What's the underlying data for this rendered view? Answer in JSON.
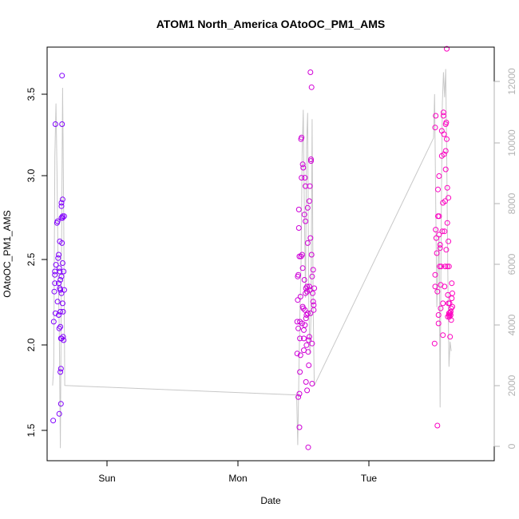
{
  "chart_data": {
    "type": "scatter",
    "title": "ATOM1 North_America OAtoOC_PM1_AMS",
    "xlabel": "Date",
    "ylabel": "OAtoOC_PM1_AMS",
    "x_ticks": [
      "Sun",
      "Mon",
      "Tue"
    ],
    "y_ticks": [
      "1.5",
      "2.0",
      "2.5",
      "3.0",
      "3.5"
    ],
    "y2_ticks": [
      "0",
      "2000",
      "4000",
      "6000",
      "8000",
      "10000",
      "12000"
    ],
    "x_axis_unit": "hours from 2016-05-07T12:00 (Sun tick at 12, Mon at 36, Tue at 60)",
    "xlim": [
      0.3,
      81.3
    ],
    "ylim": [
      1.32,
      3.79
    ],
    "y2lim": [
      -200,
      13000
    ],
    "grid": false,
    "legend": "none",
    "colors": {
      "start": "#7f00ff",
      "end": "#ff00bf",
      "line": "#c8c8c8",
      "right_axis": "#b3b3b3"
    },
    "series": [
      {
        "values_xy": [
          [
            1.4,
            1.56
          ],
          [
            1.5,
            2.15
          ],
          [
            1.6,
            2.33
          ],
          [
            1.7,
            2.43
          ],
          [
            1.7,
            2.45
          ],
          [
            1.7,
            2.38
          ],
          [
            1.8,
            2.2
          ],
          [
            1.8,
            3.33
          ],
          [
            1.9,
            2.49
          ],
          [
            2.1,
            2.74
          ],
          [
            2.2,
            2.75
          ],
          [
            2.2,
            2.27
          ],
          [
            2.3,
            2.53
          ],
          [
            2.4,
            2.55
          ],
          [
            2.4,
            2.19
          ],
          [
            2.4,
            2.38
          ],
          [
            2.5,
            2.47
          ],
          [
            2.5,
            2.11
          ],
          [
            2.5,
            1.6
          ],
          [
            2.6,
            2.45
          ],
          [
            2.6,
            2.35
          ],
          [
            2.6,
            2.63
          ],
          [
            2.7,
            2.4
          ],
          [
            2.7,
            2.21
          ],
          [
            2.7,
            2.12
          ],
          [
            2.7,
            2.34
          ],
          [
            2.7,
            1.85
          ],
          [
            2.8,
            1.87
          ],
          [
            2.8,
            1.66
          ],
          [
            2.8,
            2.05
          ],
          [
            2.9,
            2.42
          ],
          [
            2.9,
            2.32
          ],
          [
            2.9,
            2.77
          ],
          [
            2.9,
            2.84
          ],
          [
            2.9,
            2.86
          ],
          [
            2.9,
            2.05
          ],
          [
            3.0,
            3.62
          ],
          [
            3.0,
            3.33
          ],
          [
            3.0,
            2.62
          ],
          [
            3.1,
            2.77
          ],
          [
            3.1,
            2.88
          ],
          [
            3.1,
            2.78
          ],
          [
            3.1,
            2.5
          ],
          [
            3.1,
            2.26
          ],
          [
            3.2,
            2.21
          ],
          [
            3.2,
            2.06
          ],
          [
            3.3,
            2.04
          ],
          [
            3.3,
            2.45
          ],
          [
            3.4,
            2.78
          ],
          [
            3.4,
            2.34
          ]
        ]
      },
      {
        "values_xy": [
          [
            45.6,
            1.96
          ],
          [
            45.6,
            2.15
          ],
          [
            45.7,
            2.28
          ],
          [
            45.7,
            2.42
          ],
          [
            45.8,
            2.43
          ],
          [
            45.8,
            2.11
          ],
          [
            45.8,
            1.7
          ],
          [
            45.9,
            2.71
          ],
          [
            45.9,
            2.82
          ],
          [
            46.0,
            2.54
          ],
          [
            46.0,
            1.72
          ],
          [
            46.0,
            1.52
          ],
          [
            46.1,
            2.15
          ],
          [
            46.1,
            1.85
          ],
          [
            46.1,
            2.05
          ],
          [
            46.2,
            2.3
          ],
          [
            46.2,
            1.95
          ],
          [
            46.3,
            2.54
          ],
          [
            46.3,
            3.24
          ],
          [
            46.4,
            3.25
          ],
          [
            46.4,
            3.01
          ],
          [
            46.5,
            2.55
          ],
          [
            46.5,
            2.14
          ],
          [
            46.6,
            2.47
          ],
          [
            46.6,
            2.24
          ],
          [
            46.6,
            3.09
          ],
          [
            46.7,
            3.07
          ],
          [
            46.7,
            2.23
          ],
          [
            46.8,
            2.1
          ],
          [
            46.8,
            2.05
          ],
          [
            46.8,
            1.98
          ],
          [
            46.9,
            2.4
          ],
          [
            46.9,
            2.79
          ],
          [
            47.0,
            2.13
          ],
          [
            47.0,
            2.22
          ],
          [
            47.0,
            3.01
          ],
          [
            47.1,
            2.96
          ],
          [
            47.1,
            2.75
          ],
          [
            47.1,
            2.32
          ],
          [
            47.2,
            2.35
          ],
          [
            47.2,
            2.17
          ],
          [
            47.2,
            1.79
          ],
          [
            47.3,
            2.19
          ],
          [
            47.3,
            2.01
          ],
          [
            47.4,
            2.36
          ],
          [
            47.4,
            2.33
          ],
          [
            47.4,
            1.74
          ],
          [
            47.5,
            2.62
          ],
          [
            47.5,
            2.83
          ],
          [
            47.5,
            2.2
          ],
          [
            47.6,
            1.4
          ],
          [
            47.6,
            1.97
          ],
          [
            47.7,
            2.04
          ],
          [
            47.7,
            1.89
          ],
          [
            47.8,
            2.87
          ],
          [
            47.8,
            2.36
          ],
          [
            47.8,
            2.06
          ],
          [
            47.9,
            2.34
          ],
          [
            47.9,
            2.96
          ],
          [
            48.0,
            3.64
          ],
          [
            48.0,
            2.65
          ],
          [
            48.0,
            2.2
          ],
          [
            48.1,
            3.12
          ],
          [
            48.1,
            3.11
          ],
          [
            48.2,
            3.55
          ],
          [
            48.2,
            2.55
          ],
          [
            48.3,
            2.42
          ],
          [
            48.3,
            1.78
          ],
          [
            48.3,
            2.02
          ],
          [
            48.4,
            2.32
          ],
          [
            48.5,
            2.46
          ],
          [
            48.5,
            2.27
          ],
          [
            48.6,
            2.25
          ],
          [
            48.6,
            2.22
          ],
          [
            48.7,
            2.35
          ]
        ]
      },
      {
        "values_xy": [
          [
            70.5,
            2.02
          ],
          [
            70.6,
            3.31
          ],
          [
            70.6,
            2.43
          ],
          [
            70.6,
            2.36
          ],
          [
            70.7,
            3.38
          ],
          [
            70.7,
            2.7
          ],
          [
            70.8,
            2.65
          ],
          [
            70.9,
            2.56
          ],
          [
            71.0,
            2.33
          ],
          [
            71.0,
            1.53
          ],
          [
            71.1,
            2.94
          ],
          [
            71.1,
            2.78
          ],
          [
            71.2,
            2.19
          ],
          [
            71.2,
            2.14
          ],
          [
            71.3,
            3.02
          ],
          [
            71.3,
            2.78
          ],
          [
            71.3,
            2.67
          ],
          [
            71.4,
            2.48
          ],
          [
            71.5,
            2.61
          ],
          [
            71.5,
            2.59
          ],
          [
            71.6,
            2.37
          ],
          [
            71.6,
            2.23
          ],
          [
            71.7,
            2.48
          ],
          [
            71.8,
            3.29
          ],
          [
            71.8,
            3.14
          ],
          [
            71.9,
            2.69
          ],
          [
            72.0,
            2.86
          ],
          [
            72.0,
            2.26
          ],
          [
            72.0,
            2.07
          ],
          [
            72.1,
            3.38
          ],
          [
            72.1,
            3.4
          ],
          [
            72.2,
            3.27
          ],
          [
            72.2,
            3.15
          ],
          [
            72.3,
            2.69
          ],
          [
            72.3,
            2.36
          ],
          [
            72.4,
            2.48
          ],
          [
            72.4,
            2.87
          ],
          [
            72.5,
            3.06
          ],
          [
            72.5,
            3.17
          ],
          [
            72.5,
            3.33
          ],
          [
            72.6,
            3.34
          ],
          [
            72.6,
            2.58
          ],
          [
            72.7,
            3.78
          ],
          [
            72.7,
            3.24
          ],
          [
            72.8,
            2.95
          ],
          [
            72.8,
            2.74
          ],
          [
            72.8,
            2.48
          ],
          [
            72.9,
            2.31
          ],
          [
            72.9,
            2.18
          ],
          [
            73.0,
            2.26
          ],
          [
            73.0,
            2.89
          ],
          [
            73.0,
            2.63
          ],
          [
            73.1,
            2.48
          ],
          [
            73.1,
            2.2
          ],
          [
            73.1,
            2.19
          ],
          [
            73.2,
            2.26
          ],
          [
            73.2,
            2.18
          ],
          [
            73.3,
            2.2
          ],
          [
            73.3,
            2.06
          ],
          [
            73.4,
            2.21
          ],
          [
            73.4,
            2.19
          ],
          [
            73.5,
            2.16
          ],
          [
            73.5,
            2.23
          ],
          [
            73.6,
            2.38
          ],
          [
            73.6,
            2.29
          ],
          [
            73.7,
            2.32
          ],
          [
            73.7,
            2.24
          ]
        ]
      },
      {
        "axis": "right",
        "type": "line",
        "values_xy": [
          [
            1.3,
            2200
          ],
          [
            1.5,
            2800
          ],
          [
            1.7,
            9500
          ],
          [
            1.9,
            11200
          ],
          [
            2.1,
            9000
          ],
          [
            2.3,
            5800
          ],
          [
            2.5,
            4100
          ],
          [
            2.7,
            200
          ],
          [
            2.9,
            6200
          ],
          [
            3.1,
            11700
          ],
          [
            3.3,
            7900
          ],
          [
            3.5,
            2200
          ],
          [
            45.5,
            1900
          ],
          [
            45.7,
            300
          ],
          [
            45.9,
            2500
          ],
          [
            46.1,
            4500
          ],
          [
            46.3,
            6000
          ],
          [
            46.5,
            9600
          ],
          [
            46.7,
            11000
          ],
          [
            46.9,
            7800
          ],
          [
            47.1,
            5000
          ],
          [
            47.3,
            9900
          ],
          [
            47.5,
            10900
          ],
          [
            47.7,
            4800
          ],
          [
            47.9,
            3200
          ],
          [
            48.1,
            4400
          ],
          [
            48.3,
            10700
          ],
          [
            48.5,
            4700
          ],
          [
            48.7,
            2200
          ],
          [
            70.3,
            10100
          ],
          [
            70.5,
            11500
          ],
          [
            70.7,
            8000
          ],
          [
            70.9,
            4700
          ],
          [
            71.1,
            6000
          ],
          [
            71.3,
            7000
          ],
          [
            71.5,
            1500
          ],
          [
            71.7,
            7500
          ],
          [
            71.9,
            11200
          ],
          [
            72.1,
            12200
          ],
          [
            72.3,
            11400
          ],
          [
            72.5,
            12300
          ],
          [
            72.7,
            9500
          ],
          [
            72.9,
            5700
          ],
          [
            73.1,
            2800
          ],
          [
            73.3,
            3600
          ],
          [
            73.5,
            3300
          ]
        ]
      }
    ]
  }
}
